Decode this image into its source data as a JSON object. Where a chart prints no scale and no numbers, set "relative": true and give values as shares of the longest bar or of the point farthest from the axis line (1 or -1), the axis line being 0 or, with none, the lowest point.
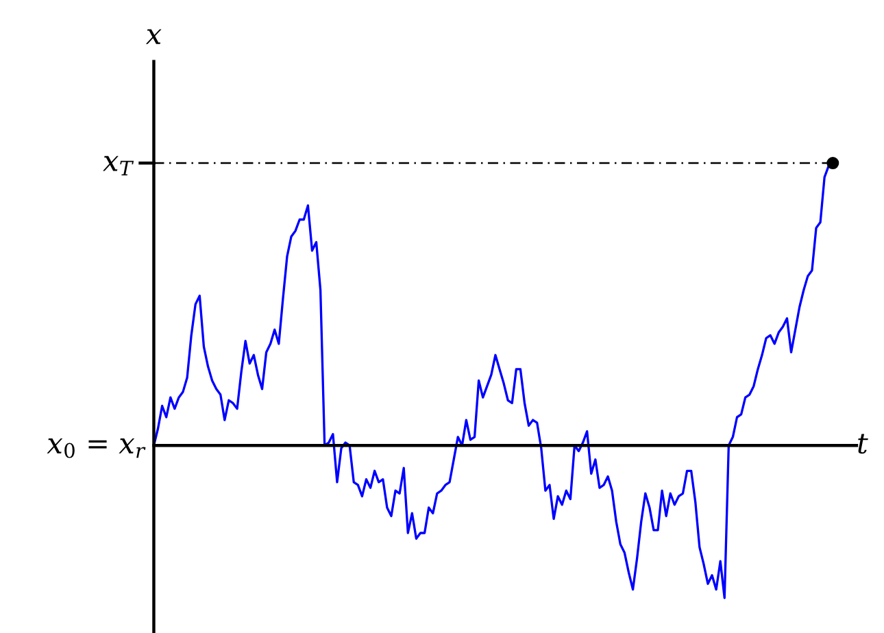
{
  "chart_data": {
    "type": "line",
    "relative": true,
    "xlabel": "t",
    "ylabel": "x",
    "categories": [
      null,
      null,
      null,
      null,
      null,
      null,
      null,
      null,
      null,
      null,
      null,
      null,
      null,
      null,
      null,
      null,
      null,
      null,
      null,
      null,
      null,
      null,
      null,
      null,
      null,
      null,
      null,
      null,
      null,
      null,
      null,
      null,
      null,
      null,
      null,
      null,
      null,
      null,
      null,
      null,
      null,
      null,
      null,
      null,
      null,
      null,
      null,
      null,
      null,
      null,
      null,
      null,
      null,
      null,
      null,
      null,
      null,
      null,
      null,
      null,
      null,
      null,
      null,
      null,
      null,
      null,
      null,
      null,
      null,
      null,
      null,
      null,
      null,
      null,
      null,
      null,
      null,
      null,
      null,
      null,
      null,
      null,
      null,
      null,
      null,
      null,
      null,
      null,
      null,
      null,
      null,
      null,
      null,
      null,
      null,
      null,
      null,
      null,
      null,
      null,
      null,
      null,
      null,
      null,
      null,
      null,
      null,
      null,
      null,
      null,
      null,
      null,
      null,
      null,
      null,
      null,
      null,
      null,
      null,
      null,
      null,
      null,
      null,
      null,
      null,
      null,
      null,
      null,
      null,
      null,
      null,
      null,
      null,
      null,
      null,
      null,
      null,
      null,
      null,
      null,
      null,
      null,
      null,
      null,
      null,
      null,
      null,
      null,
      null,
      null,
      null,
      null,
      null,
      null,
      null,
      null,
      null,
      null,
      null,
      null,
      null,
      null,
      null,
      null
    ],
    "series": [
      {
        "color": "#0000ff",
        "values": [
          0,
          0.06,
          0.14,
          0.1,
          0.17,
          0.13,
          0.17,
          0.19,
          0.24,
          0.39,
          0.5,
          0.53,
          0.35,
          0.28,
          0.23,
          0.2,
          0.18,
          0.09,
          0.16,
          0.15,
          0.13,
          0.26,
          0.37,
          0.29,
          0.32,
          0.25,
          0.2,
          0.33,
          0.36,
          0.41,
          0.36,
          0.52,
          0.67,
          0.74,
          0.76,
          0.8,
          0.8,
          0.85,
          0.69,
          0.72,
          0.55,
          0,
          0.01,
          0.04,
          -0.13,
          -0.01,
          0.01,
          0.0,
          -0.13,
          -0.14,
          -0.18,
          -0.12,
          -0.15,
          -0.09,
          -0.13,
          -0.12,
          -0.22,
          -0.25,
          -0.16,
          -0.17,
          -0.08,
          -0.31,
          -0.24,
          -0.33,
          -0.31,
          -0.31,
          -0.22,
          -0.24,
          -0.17,
          -0.16,
          -0.14,
          -0.13,
          -0.05,
          0.03,
          0,
          0.09,
          0.02,
          0.03,
          0.23,
          0.17,
          0.21,
          0.25,
          0.32,
          0.27,
          0.22,
          0.16,
          0.15,
          0.27,
          0.27,
          0.15,
          0.07,
          0.09,
          0.08,
          -0.01,
          -0.16,
          -0.14,
          -0.26,
          -0.18,
          -0.21,
          -0.16,
          -0.19,
          0,
          -0.02,
          0.01,
          0.05,
          -0.1,
          -0.05,
          -0.15,
          -0.14,
          -0.11,
          -0.16,
          -0.27,
          -0.35,
          -0.38,
          -0.45,
          -0.51,
          -0.4,
          -0.27,
          -0.17,
          -0.22,
          -0.3,
          -0.3,
          -0.16,
          -0.25,
          -0.17,
          -0.21,
          -0.18,
          -0.17,
          -0.09,
          -0.09,
          -0.2,
          -0.36,
          -0.42,
          -0.49,
          -0.46,
          -0.51,
          -0.41,
          -0.54,
          0,
          0.03,
          0.1,
          0.11,
          0.17,
          0.18,
          0.21,
          0.27,
          0.32,
          0.38,
          0.39,
          0.36,
          0.4,
          0.42,
          0.45,
          0.33,
          0.41,
          0.49,
          0.55,
          0.6,
          0.62,
          0.77,
          0.79,
          0.95,
          0.99,
          1
        ]
      }
    ],
    "ref_lines": [
      {
        "axis": "y",
        "value": 1,
        "label": "x$_{T}$",
        "color": "#000000",
        "line_style": "dashdot"
      }
    ],
    "annotations": [
      "x$_{0}$ = x$_{r}$"
    ]
  }
}
